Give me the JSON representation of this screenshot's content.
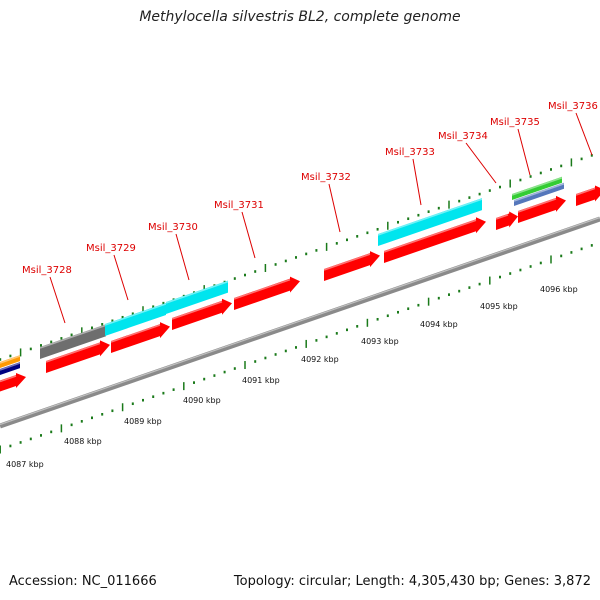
{
  "title": "Methylocella silvestris BL2, complete genome",
  "footer": {
    "accession": "Accession: NC_011666",
    "stats": "Topology: circular; Length: 4,305,430 bp; Genes: 3,872"
  },
  "colors": {
    "cds": "#ff0000",
    "cyan_feature": "#00e5ee",
    "gray_feature": "#6e6e6e",
    "green_feature": "#33cc33",
    "blue_feature": "#5577bb",
    "orange_feature": "#ff9900",
    "navy_feature": "#000080",
    "backbone": "#8a8a8a",
    "label": "#dd0000",
    "tick": "#1a7a1a"
  },
  "gene_labels": [
    "Msil_3728",
    "Msil_3729",
    "Msil_3730",
    "Msil_3731",
    "Msil_3732",
    "Msil_3733",
    "Msil_3734",
    "Msil_3735",
    "Msil_3736"
  ],
  "kbp_labels": [
    "4087 kbp",
    "4088 kbp",
    "4089 kbp",
    "4090 kbp",
    "4091 kbp",
    "4092 kbp",
    "4093 kbp",
    "4094 kbp",
    "4095 kbp",
    "4096 kbp"
  ]
}
